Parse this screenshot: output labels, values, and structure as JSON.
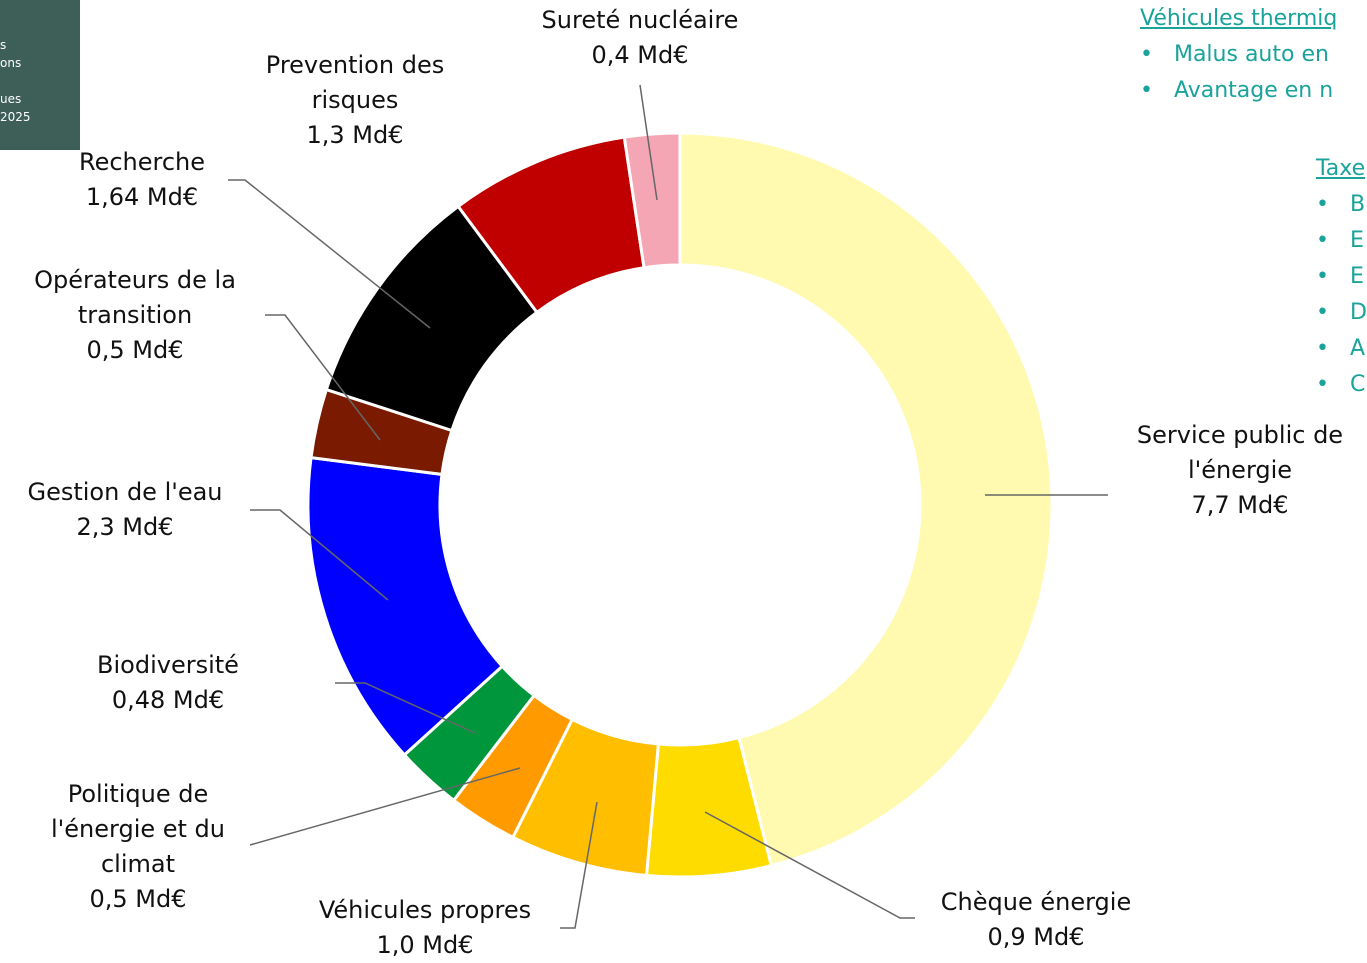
{
  "chart_data": {
    "type": "donut",
    "categories": [
      "Service public de l'énergie",
      "Chèque énergie",
      "Véhicules propres",
      "Politique de l'énergie et du climat",
      "Biodiversité",
      "Gestion de l'eau",
      "Opérateurs de la transition",
      "Recherche",
      "Prevention des risques",
      "Sureté nucléaire"
    ],
    "values": [
      7.7,
      0.9,
      1.0,
      0.5,
      0.48,
      2.3,
      0.5,
      1.64,
      1.3,
      0.4
    ],
    "value_labels": [
      "7,7 Md€",
      "0,9 Md€",
      "1,0 Md€",
      "0,5 Md€",
      "0,48 Md€",
      "2,3 Md€",
      "0,5 Md€",
      "1,64 Md€",
      "1,3 Md€",
      "0,4 Md€"
    ],
    "colors": [
      "#fffab0",
      "#ffdc00",
      "#ffbe00",
      "#ff9a00",
      "#00963c",
      "#0000ff",
      "#7a1a00",
      "#000000",
      "#c00000",
      "#f4a6b4"
    ]
  },
  "overlay": {
    "corner_texts": [
      "s",
      "ons",
      "ues",
      "2025"
    ],
    "heading1": "Véhicules thermiq",
    "bullets1": [
      "Malus auto en",
      "Avantage en n"
    ],
    "heading2": "Taxe",
    "bullets2": [
      "B",
      "E",
      "E",
      "D",
      "A",
      "C"
    ]
  }
}
